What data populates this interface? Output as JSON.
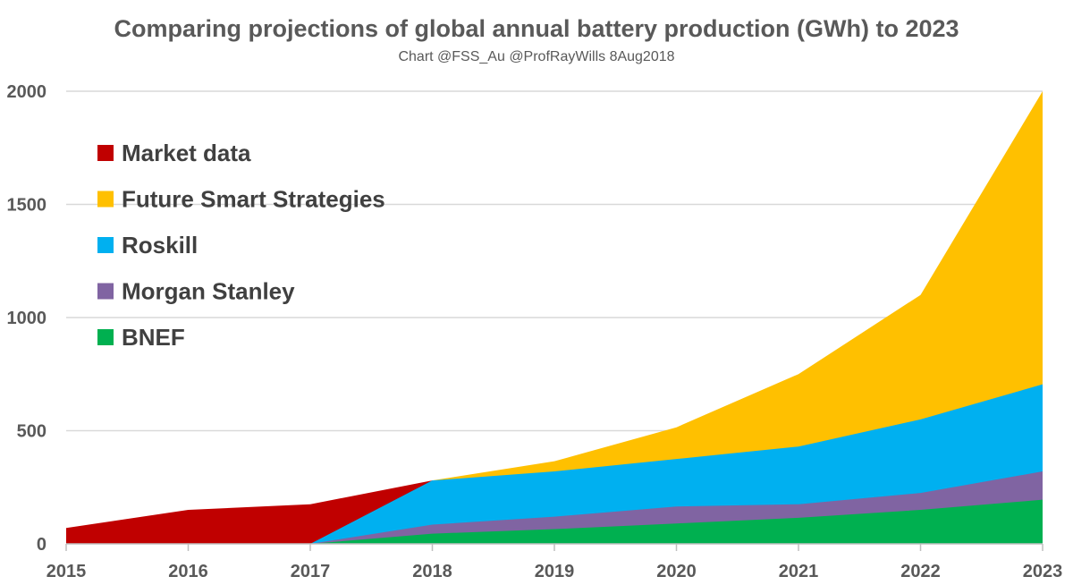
{
  "chart_data": {
    "type": "area",
    "title": "Comparing projections of global annual battery production (GWh) to 2023",
    "subtitle": "Chart @FSS_Au  @ProfRayWills 8Aug2018",
    "xlabel": "",
    "ylabel": "",
    "x": [
      2015,
      2016,
      2017,
      2018,
      2019,
      2020,
      2021,
      2022,
      2023
    ],
    "ylim": [
      0,
      2000
    ],
    "y_ticks": [
      0,
      500,
      1000,
      1500,
      2000
    ],
    "grid": true,
    "legend_position": "top-left",
    "stacking": "overlapping (each series drawn from zero, largest behind)",
    "series": [
      {
        "name": "Market data",
        "color": "#C00000",
        "x": [
          2015,
          2016,
          2017,
          2018
        ],
        "values": [
          70,
          150,
          175,
          280
        ]
      },
      {
        "name": "Future Smart Strategies",
        "color": "#FFC000",
        "x": [
          2018,
          2019,
          2020,
          2021,
          2022,
          2023
        ],
        "values": [
          280,
          365,
          515,
          750,
          1100,
          2000
        ]
      },
      {
        "name": "Roskill",
        "color": "#00B0F0",
        "x": [
          2017,
          2018,
          2019,
          2020,
          2021,
          2022,
          2023
        ],
        "values": [
          0,
          280,
          320,
          375,
          430,
          550,
          705
        ]
      },
      {
        "name": "Morgan Stanley",
        "color": "#8064A2",
        "x": [
          2017,
          2018,
          2019,
          2020,
          2021,
          2022,
          2023
        ],
        "values": [
          0,
          85,
          120,
          165,
          175,
          225,
          320
        ]
      },
      {
        "name": "BNEF",
        "color": "#00B050",
        "x": [
          2017,
          2018,
          2019,
          2020,
          2021,
          2022,
          2023
        ],
        "values": [
          0,
          45,
          65,
          90,
          115,
          150,
          195
        ]
      }
    ],
    "legend_order": [
      "Market data",
      "Future Smart Strategies",
      "Roskill",
      "Morgan Stanley",
      "BNEF"
    ],
    "axis_color": "#bfbfbf",
    "grid_color": "#d9d9d9"
  }
}
